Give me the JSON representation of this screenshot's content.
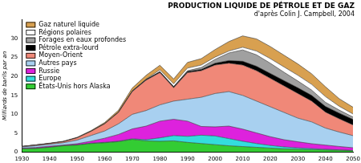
{
  "chart_data": {
    "type": "area",
    "title": "PRODUCTION LIQUIDE DE PÉTROLE ET DE GAZ",
    "subtitle": "d'après Colin J. Campbell, 2004",
    "y_label": "Milliards de barils par an",
    "x": [
      1930,
      1935,
      1940,
      1945,
      1950,
      1955,
      1960,
      1965,
      1970,
      1975,
      1980,
      1985,
      1990,
      1995,
      2000,
      2005,
      2010,
      2015,
      2020,
      2025,
      2030,
      2035,
      2040,
      2045,
      2050
    ],
    "series": [
      {
        "name": "États-Unis hors Alaska",
        "color": "#33cc33",
        "values": [
          0.9,
          1.0,
          1.3,
          1.7,
          1.9,
          2.3,
          2.5,
          2.8,
          3.4,
          3.0,
          2.9,
          3.0,
          2.6,
          2.3,
          2.0,
          1.7,
          1.5,
          1.3,
          1.1,
          0.9,
          0.8,
          0.7,
          0.6,
          0.5,
          0.4
        ]
      },
      {
        "name": "Europe",
        "color": "#33dddd",
        "values": [
          0.05,
          0.05,
          0.05,
          0.05,
          0.05,
          0.1,
          0.1,
          0.1,
          0.15,
          0.3,
          0.9,
          1.4,
          1.6,
          2.2,
          2.3,
          1.9,
          1.4,
          1.0,
          0.7,
          0.5,
          0.35,
          0.25,
          0.18,
          0.12,
          0.08
        ]
      },
      {
        "name": "Russie",
        "color": "#dd22dd",
        "values": [
          0.15,
          0.2,
          0.25,
          0.15,
          0.3,
          0.5,
          1.1,
          1.8,
          2.6,
          3.6,
          4.4,
          4.3,
          4.0,
          2.3,
          2.4,
          3.3,
          3.2,
          2.8,
          2.3,
          1.9,
          1.6,
          1.3,
          1.1,
          0.9,
          0.7
        ]
      },
      {
        "name": "Autres pays",
        "color": "#a8d0f0",
        "values": [
          0.3,
          0.45,
          0.5,
          0.6,
          0.95,
          1.5,
          1.9,
          2.8,
          3.85,
          4.1,
          4.3,
          4.8,
          5.8,
          7.7,
          8.8,
          9.1,
          8.9,
          8.4,
          7.9,
          7.2,
          6.25,
          5.75,
          4.5,
          3.8,
          3.2
        ]
      },
      {
        "name": "Moyen-Orient",
        "color": "#f08878",
        "values": [
          0.1,
          0.2,
          0.2,
          0.3,
          0.6,
          1.1,
          1.9,
          3.0,
          6.0,
          8.0,
          8.5,
          3.5,
          7.0,
          7.0,
          7.5,
          7.5,
          8.0,
          8.0,
          7.5,
          7.0,
          6.5,
          5.5,
          4.2,
          3.5,
          2.8
        ]
      },
      {
        "name": "Pétrole extra-lourd",
        "color": "#000000",
        "values": [
          0,
          0,
          0,
          0,
          0,
          0,
          0.05,
          0.1,
          0.15,
          0.2,
          0.25,
          0.3,
          0.3,
          0.35,
          0.5,
          0.7,
          1.0,
          1.2,
          1.3,
          1.4,
          1.5,
          1.5,
          1.5,
          1.5,
          1.5
        ]
      },
      {
        "name": "Forages en eaux profondes",
        "color": "#a0a0a0",
        "values": [
          0,
          0,
          0,
          0,
          0,
          0,
          0,
          0,
          0,
          0,
          0,
          0.05,
          0.2,
          0.5,
          1.0,
          2.0,
          3.0,
          3.0,
          2.7,
          2.2,
          1.8,
          1.4,
          1.1,
          0.8,
          0.6
        ]
      },
      {
        "name": "Régions polaires",
        "color": "#ffffff",
        "values": [
          0,
          0,
          0,
          0,
          0,
          0,
          0,
          0,
          0,
          0.1,
          0.5,
          0.7,
          0.7,
          0.65,
          0.6,
          0.5,
          0.7,
          1.0,
          1.2,
          1.4,
          1.5,
          1.5,
          1.5,
          1.0,
          0.8
        ]
      },
      {
        "name": "Gaz naturel liquide",
        "color": "#d8a050",
        "values": [
          0.05,
          0.05,
          0.1,
          0.1,
          0.15,
          0.2,
          0.3,
          0.5,
          0.8,
          1.0,
          1.2,
          1.3,
          1.5,
          1.7,
          2.0,
          2.5,
          3.0,
          3.2,
          3.2,
          3.1,
          3.0,
          2.8,
          2.6,
          2.0,
          1.8
        ]
      }
    ],
    "xlim": [
      1930,
      2050
    ],
    "xticks": [
      1930,
      1940,
      1950,
      1960,
      1970,
      1980,
      1990,
      2000,
      2010,
      2020,
      2030,
      2040,
      2050
    ],
    "ylim": [
      0,
      35
    ],
    "yticks": [
      0,
      5,
      10,
      15,
      20,
      25,
      30
    ],
    "stacked": true,
    "grid": false,
    "legend": "top-left"
  }
}
